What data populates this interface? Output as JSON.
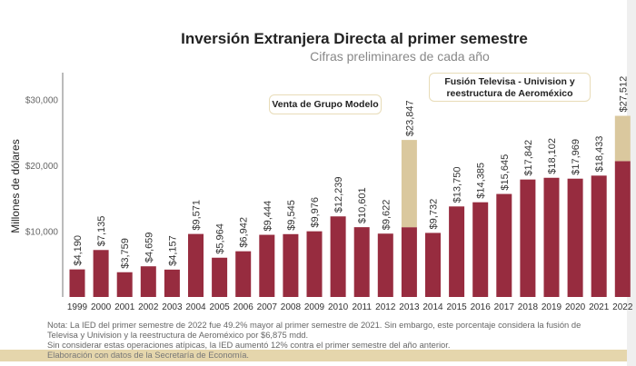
{
  "title": "Inversión Extranjera Directa al primer semestre",
  "subtitle": "Cifras preliminares de cada año",
  "annotations": {
    "modelo": "Venta de Grupo Modelo",
    "televisa": "Fusión Televisa - Univision y reestructura de Aeroméxico"
  },
  "note_lines": [
    "Nota: La IED del primer semestre de 2022 fue 49.2% mayor al primer semestre de 2021. Sin embargo, este porcentaje considera la fusión de",
    "Televisa y Univision y la reestructura de Aeroméxico por $6,875 mdd.",
    "Sin considerar estas operaciones atípicas, la IED aumentó 12% contra el primer semestre del año anterior."
  ],
  "source": "Elaboración con datos de la Secretaría de Economía.",
  "chart_data": {
    "type": "bar",
    "stacked": true,
    "title": "Inversión Extranjera Directa al primer semestre",
    "subtitle": "Cifras preliminares de cada año",
    "ylabel": "Millones de dólares",
    "ylim": [
      0,
      33000
    ],
    "yticks": [
      "$10,000",
      "$20,000",
      "$30,000"
    ],
    "ytick_values": [
      10000,
      20000,
      30000
    ],
    "grid": false,
    "categories": [
      "1999",
      "2000",
      "2001",
      "2002",
      "2003",
      "2004",
      "2005",
      "2006",
      "2007",
      "2008",
      "2009",
      "2010",
      "2011",
      "2012",
      "2013",
      "2014",
      "2015",
      "2016",
      "2017",
      "2018",
      "2019",
      "2020",
      "2021",
      "2022"
    ],
    "totals": [
      4190,
      7135,
      3759,
      4659,
      4157,
      9571,
      5964,
      6942,
      9444,
      9545,
      9976,
      12239,
      10601,
      9622,
      23847,
      9732,
      13750,
      14385,
      15645,
      17842,
      18102,
      17969,
      18433,
      27512
    ],
    "labels": [
      "$4,190",
      "$7,135",
      "$3,759",
      "$4,659",
      "$4,157",
      "$9,571",
      "$5,964",
      "$6,942",
      "$9,444",
      "$9,545",
      "$9,976",
      "$12,239",
      "$10,601",
      "$9,622",
      "$23,847",
      "$9,732",
      "$13,750",
      "$14,385",
      "$15,645",
      "$17,842",
      "$18,102",
      "$17,969",
      "$18,433",
      "$27,512"
    ],
    "extraordinary": [
      0,
      0,
      0,
      0,
      0,
      0,
      0,
      0,
      0,
      0,
      0,
      0,
      0,
      0,
      13250,
      0,
      0,
      0,
      0,
      0,
      0,
      0,
      0,
      6875
    ],
    "colors": {
      "base": "#972c3f",
      "extraordinary": "#dac89e"
    }
  }
}
